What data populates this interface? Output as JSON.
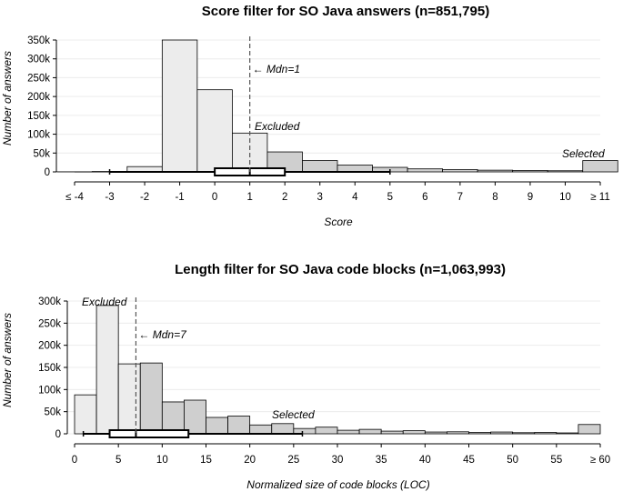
{
  "chart_data": [
    {
      "type": "bar",
      "title": "Score filter for SO Java answers (n=851,795)",
      "xlabel": "Score",
      "ylabel": "Number of answers",
      "ylim": [
        0,
        350000
      ],
      "yticks": [
        0,
        50000,
        100000,
        150000,
        200000,
        250000,
        300000,
        350000
      ],
      "ytick_labels": [
        "0",
        "50k",
        "100k",
        "150k",
        "200k",
        "250k",
        "300k",
        "350k"
      ],
      "grid": true,
      "categories": [
        "≤ -4",
        "-3",
        "-2",
        "-1",
        "0",
        "1",
        "2",
        "3",
        "4",
        "5",
        "6",
        "7",
        "8",
        "9",
        "10",
        "≥ 11"
      ],
      "values": [
        200,
        1000,
        14000,
        350000,
        218000,
        103000,
        53000,
        30000,
        18000,
        12000,
        8000,
        6000,
        4500,
        3500,
        3000,
        30000
      ],
      "bar_groups": [
        "excluded",
        "excluded",
        "excluded",
        "excluded",
        "excluded",
        "excluded",
        "selected",
        "selected",
        "selected",
        "selected",
        "selected",
        "selected",
        "selected",
        "selected",
        "selected",
        "selected"
      ],
      "median": {
        "label": "← Mdn=1",
        "value": 1
      },
      "boxplot": {
        "min": -3,
        "q1": 0,
        "median": 1,
        "q3": 2,
        "max": 5,
        "lo": -4,
        "hi": 11
      },
      "annotations": {
        "excluded": "Excluded",
        "selected": "Selected"
      },
      "colors": {
        "excluded": "#ececec",
        "selected": "#cfcfcf"
      }
    },
    {
      "type": "bar",
      "title": "Length filter for SO Java code blocks (n=1,063,993)",
      "xlabel": "Normalized size of code blocks (LOC)",
      "ylabel": "Number of answers",
      "ylim": [
        0,
        300000
      ],
      "yticks": [
        0,
        50000,
        100000,
        150000,
        200000,
        250000,
        300000
      ],
      "ytick_labels": [
        "0",
        "50k",
        "100k",
        "150k",
        "200k",
        "250k",
        "300k"
      ],
      "grid": true,
      "xticks": [
        0,
        5,
        10,
        15,
        20,
        25,
        30,
        35,
        40,
        45,
        50,
        55,
        60
      ],
      "xtick_labels": [
        "0",
        "5",
        "10",
        "15",
        "20",
        "25",
        "30",
        "35",
        "40",
        "45",
        "50",
        "55",
        "≥ 60"
      ],
      "bin_width": 2.5,
      "bin_starts": [
        0,
        2.5,
        5,
        7.5,
        10,
        12.5,
        15,
        17.5,
        20,
        22.5,
        25,
        27.5,
        30,
        32.5,
        35,
        37.5,
        40,
        42.5,
        45,
        47.5,
        50,
        52.5,
        55,
        57.5
      ],
      "values": [
        88000,
        290000,
        158000,
        160000,
        72000,
        76000,
        37000,
        40000,
        20000,
        23000,
        12000,
        15000,
        8000,
        10000,
        6000,
        7000,
        4000,
        4500,
        3000,
        4000,
        2500,
        3000,
        2000,
        21000
      ],
      "bar_groups": [
        "excluded",
        "excluded",
        "excluded",
        "selected",
        "selected",
        "selected",
        "selected",
        "selected",
        "selected",
        "selected",
        "selected",
        "selected",
        "selected",
        "selected",
        "selected",
        "selected",
        "selected",
        "selected",
        "selected",
        "selected",
        "selected",
        "selected",
        "selected",
        "selected"
      ],
      "median": {
        "label": "← Mdn=7",
        "value": 7
      },
      "boxplot": {
        "min": 1,
        "q1": 4,
        "median": 7,
        "q3": 13,
        "max": 26
      },
      "annotations": {
        "excluded": "Excluded",
        "selected": "Selected"
      },
      "colors": {
        "excluded": "#ececec",
        "selected": "#cfcfcf"
      }
    }
  ]
}
